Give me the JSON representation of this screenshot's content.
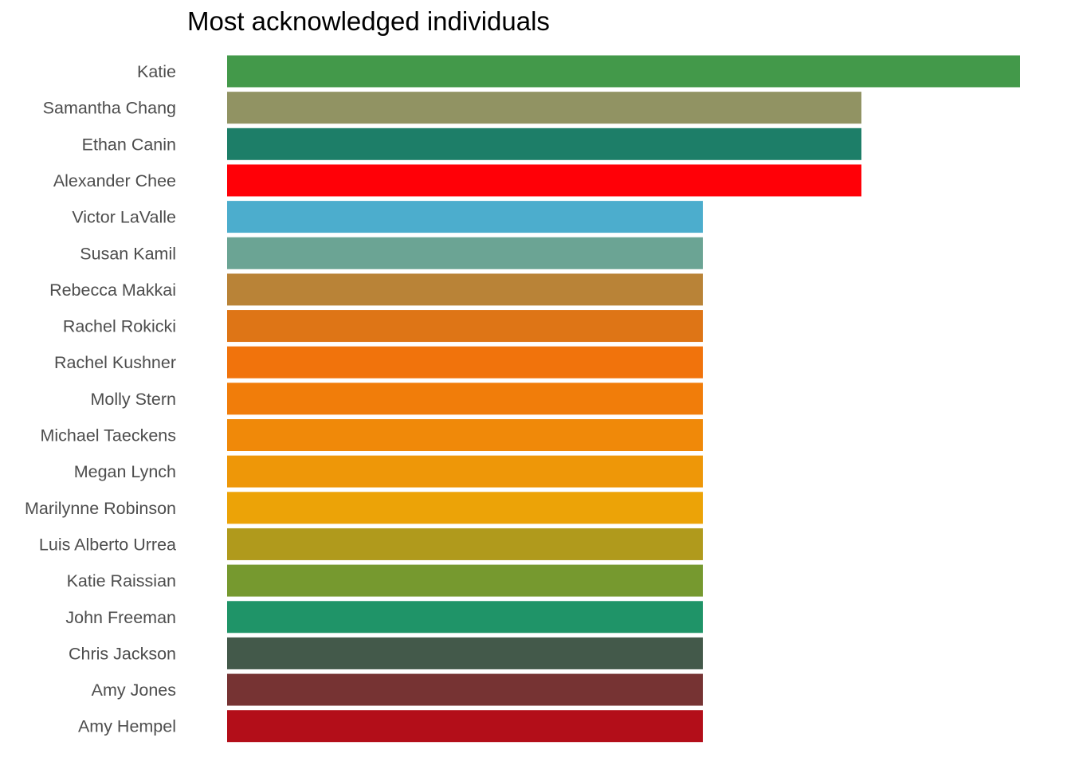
{
  "chart_data": {
    "type": "bar",
    "orientation": "horizontal",
    "title": "Most acknowledged individuals",
    "xlabel": "",
    "ylabel": "",
    "xlim": [
      0,
      5
    ],
    "grid": false,
    "legend": "none",
    "categories": [
      "Katie",
      "Samantha Chang",
      "Ethan Canin",
      "Alexander Chee",
      "Victor LaValle",
      "Susan Kamil",
      "Rebecca Makkai",
      "Rachel Rokicki",
      "Rachel Kushner",
      "Molly Stern",
      "Michael Taeckens",
      "Megan Lynch",
      "Marilynne Robinson",
      "Luis Alberto Urrea",
      "Katie Raissian",
      "John Freeman",
      "Chris Jackson",
      "Amy Jones",
      "Amy Hempel"
    ],
    "values": [
      5,
      4,
      4,
      4,
      3,
      3,
      3,
      3,
      3,
      3,
      3,
      3,
      3,
      3,
      3,
      3,
      3,
      3,
      3
    ],
    "colors": [
      "#43994A",
      "#919363",
      "#1D7E68",
      "#FF0007",
      "#4CADCD",
      "#6BA494",
      "#B98337",
      "#DE7516",
      "#F1730C",
      "#F17D0A",
      "#F08909",
      "#EE9708",
      "#ECA307",
      "#B09A1C",
      "#76992F",
      "#1F9468",
      "#43594A",
      "#763333",
      "#B30E19"
    ]
  }
}
